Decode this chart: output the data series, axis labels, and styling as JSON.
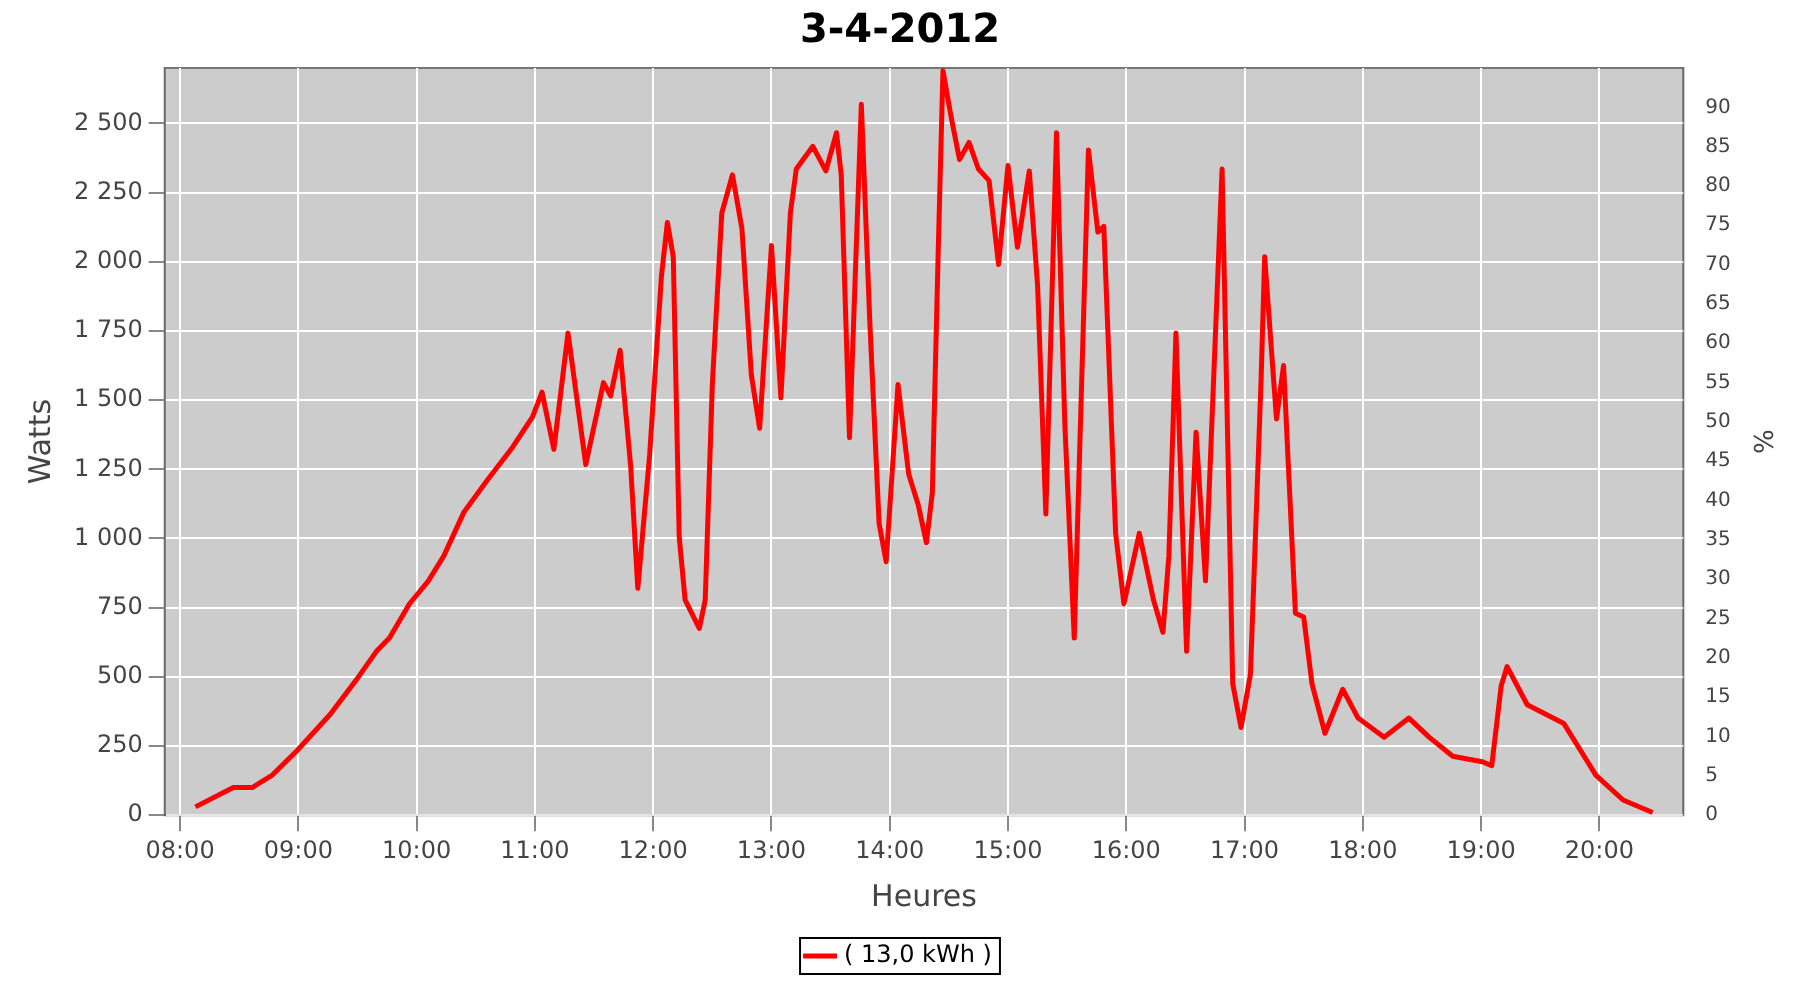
{
  "chart_data": {
    "type": "line",
    "title": "3-4-2012",
    "xlabel": "Heures",
    "ylabel": "Watts",
    "y2label": "%",
    "x": [
      8.13,
      8.45,
      8.61,
      8.78,
      8.99,
      9.27,
      9.49,
      9.66,
      9.77,
      9.94,
      10.1,
      10.23,
      10.4,
      10.6,
      10.81,
      10.98,
      11.06,
      11.16,
      11.28,
      11.43,
      11.58,
      11.64,
      11.72,
      11.81,
      11.87,
      11.97,
      12.07,
      12.12,
      12.17,
      12.22,
      12.27,
      12.39,
      12.44,
      12.5,
      12.58,
      12.67,
      12.75,
      12.83,
      12.9,
      13.0,
      13.08,
      13.16,
      13.21,
      13.35,
      13.46,
      13.55,
      13.59,
      13.66,
      13.76,
      13.83,
      13.91,
      13.97,
      14.07,
      14.16,
      14.24,
      14.31,
      14.36,
      14.41,
      14.45,
      14.52,
      14.59,
      14.67,
      14.75,
      14.84,
      14.92,
      15.0,
      15.08,
      15.18,
      15.25,
      15.32,
      15.41,
      15.48,
      15.56,
      15.68,
      15.76,
      15.81,
      15.91,
      15.98,
      16.11,
      16.23,
      16.31,
      16.36,
      16.42,
      16.51,
      16.59,
      16.67,
      16.81,
      16.9,
      16.97,
      17.05,
      17.14,
      17.17,
      17.27,
      17.33,
      17.43,
      17.5,
      17.57,
      17.68,
      17.83,
      17.96,
      18.18,
      18.39,
      18.56,
      18.76,
      19.01,
      19.09,
      19.17,
      19.22,
      19.39,
      19.7,
      19.97,
      20.2,
      20.45
    ],
    "series": [
      {
        "name": "( 13,0 kWh )",
        "color": "#ff0000",
        "values": [
          30,
          100,
          100,
          145,
          234,
          365,
          489,
          592,
          640,
          764,
          847,
          937,
          1095,
          1212,
          1329,
          1439,
          1529,
          1322,
          1742,
          1267,
          1563,
          1515,
          1680,
          1260,
          820,
          1302,
          1949,
          2142,
          2018,
          1006,
          778,
          675,
          778,
          1556,
          2176,
          2314,
          2121,
          1591,
          1398,
          2059,
          1508,
          2176,
          2335,
          2417,
          2328,
          2466,
          2314,
          1364,
          2569,
          1798,
          1054,
          916,
          1556,
          1233,
          1123,
          985,
          1164,
          2039,
          2690,
          2521,
          2369,
          2431,
          2335,
          2293,
          1990,
          2348,
          2052,
          2328,
          1915,
          1088,
          2466,
          1419,
          640,
          2404,
          2107,
          2128,
          1019,
          764,
          1019,
          778,
          661,
          937,
          1742,
          592,
          1384,
          847,
          2335,
          475,
          317,
          510,
          1577,
          2018,
          1432,
          1625,
          730,
          716,
          475,
          296,
          455,
          351,
          282,
          351,
          282,
          213,
          193,
          179,
          468,
          537,
          399,
          331,
          145,
          55,
          10
        ]
      }
    ],
    "xlim": [
      7.87,
      20.71
    ],
    "xticks": [
      {
        "value": 8,
        "label": "08:00"
      },
      {
        "value": 9,
        "label": "09:00"
      },
      {
        "value": 10,
        "label": "10:00"
      },
      {
        "value": 11,
        "label": "11:00"
      },
      {
        "value": 12,
        "label": "12:00"
      },
      {
        "value": 13,
        "label": "13:00"
      },
      {
        "value": 14,
        "label": "14:00"
      },
      {
        "value": 15,
        "label": "15:00"
      },
      {
        "value": 16,
        "label": "16:00"
      },
      {
        "value": 17,
        "label": "17:00"
      },
      {
        "value": 18,
        "label": "18:00"
      },
      {
        "value": 19,
        "label": "19:00"
      },
      {
        "value": 20,
        "label": "20:00"
      }
    ],
    "ylim": [
      0,
      2700
    ],
    "yticks": [
      0,
      250,
      500,
      750,
      {
        "value": 1000,
        "label": "1 000"
      },
      {
        "value": 1250,
        "label": "1 250"
      },
      {
        "value": 1500,
        "label": "1 500"
      },
      {
        "value": 1750,
        "label": "1 750"
      },
      {
        "value": 2000,
        "label": "2 000"
      },
      {
        "value": 2250,
        "label": "2 250"
      },
      {
        "value": 2500,
        "label": "2 500"
      }
    ],
    "y2lim": [
      0,
      95
    ],
    "y2ticks": [
      0,
      5,
      10,
      15,
      20,
      25,
      30,
      35,
      40,
      45,
      50,
      55,
      60,
      65,
      70,
      75,
      80,
      85,
      90
    ],
    "grid": true,
    "legend": "bottom",
    "marker": "none",
    "line_style": "solid"
  }
}
